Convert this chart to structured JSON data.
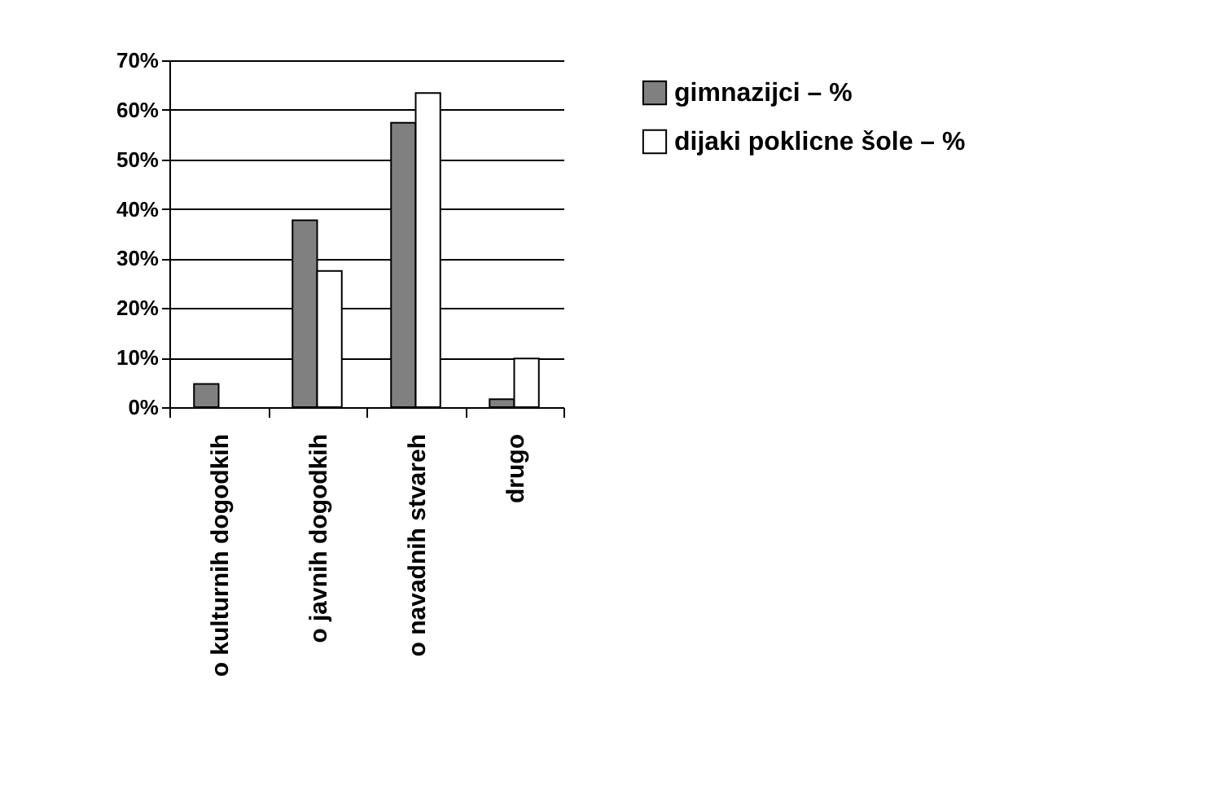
{
  "chart_data": {
    "type": "bar",
    "categories": [
      "o kulturnih dogodkih",
      "o javnih dogodkih",
      "o navadnih stvareh",
      "drugo"
    ],
    "series": [
      {
        "name": "gimnazijci – %",
        "color": "#808080",
        "values": [
          4.7,
          37.7,
          57.4,
          1.6
        ]
      },
      {
        "name": "dijaki poklicne šole – %",
        "color": "#ffffff",
        "values": [
          null,
          27.5,
          63.4,
          9.8
        ]
      }
    ],
    "ylim": [
      0,
      70
    ],
    "yticks": [
      {
        "value": 0,
        "label": "0%"
      },
      {
        "value": 10,
        "label": "10%"
      },
      {
        "value": 20,
        "label": "20%"
      },
      {
        "value": 30,
        "label": "30%"
      },
      {
        "value": 40,
        "label": "40%"
      },
      {
        "value": 50,
        "label": "50%"
      },
      {
        "value": 60,
        "label": "60%"
      },
      {
        "value": 70,
        "label": "70%"
      }
    ],
    "grid": "y",
    "legend": "top right"
  }
}
